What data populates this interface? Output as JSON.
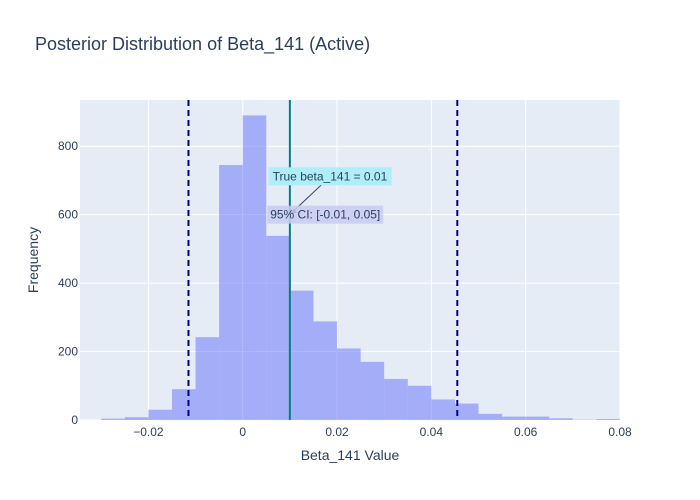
{
  "chart_data": {
    "type": "bar",
    "title": "Posterior Distribution of Beta_141 (Active)",
    "xlabel": "Beta_141 Value",
    "ylabel": "Frequency",
    "xlim": [
      -0.0345,
      0.08
    ],
    "ylim": [
      0,
      935
    ],
    "x_ticks": [
      -0.02,
      0,
      0.02,
      0.04,
      0.06,
      0.08
    ],
    "x_tick_labels": [
      "−0.02",
      "0",
      "0.02",
      "0.04",
      "0.06",
      "0.08"
    ],
    "y_ticks": [
      0,
      200,
      400,
      600,
      800
    ],
    "y_tick_labels": [
      "0",
      "200",
      "400",
      "600",
      "800"
    ],
    "bin_width": 0.005,
    "bin_starts": [
      -0.03,
      -0.025,
      -0.02,
      -0.015,
      -0.01,
      -0.005,
      0,
      0.005,
      0.01,
      0.015,
      0.02,
      0.025,
      0.03,
      0.035,
      0.04,
      0.045,
      0.05,
      0.055,
      0.06,
      0.065,
      0.07,
      0.075
    ],
    "counts": [
      4,
      8,
      30,
      90,
      242,
      745,
      890,
      538,
      378,
      288,
      209,
      170,
      120,
      100,
      60,
      48,
      18,
      10,
      10,
      5,
      1,
      3
    ],
    "bar_color": "#636efa",
    "bar_opacity": 0.5,
    "true_value_line": {
      "x": 0.01,
      "color": "#008080"
    },
    "ci_lines": {
      "lower": -0.0115,
      "upper": 0.0455,
      "color": "#00008b"
    },
    "annotations": [
      {
        "text": "True beta_141 = 0.01",
        "bg": "#aeeef9",
        "x": 0.01,
        "y": 600,
        "anchor_x": 0.0185,
        "anchor_y": 712
      },
      {
        "text": "95% CI: [-0.01, 0.05]",
        "bg": "#c9cdf0",
        "x": 0.0175,
        "y": 600
      }
    ],
    "grid": true,
    "plot_bg": "#e5ecf6",
    "legend": "none"
  }
}
